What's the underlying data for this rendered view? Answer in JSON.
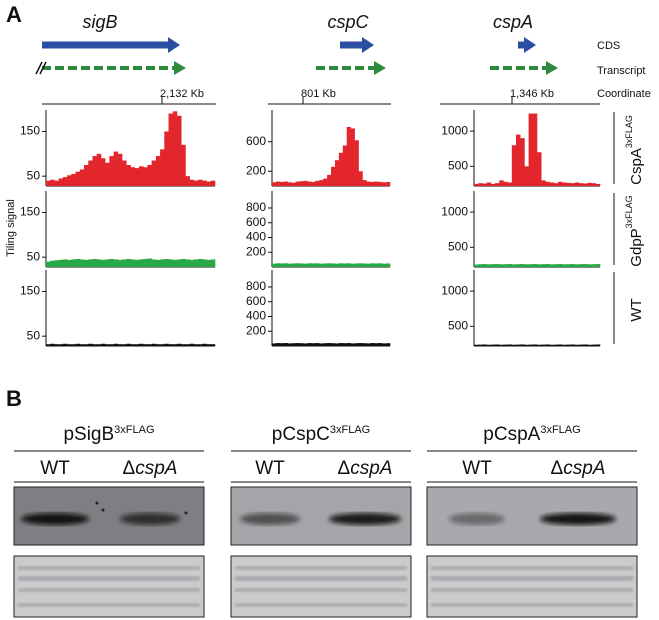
{
  "panel_a": {
    "label": "A",
    "y_axis_label": "Tiling signal",
    "track_labels": [
      "CDS",
      "Transcript",
      "Coordinate"
    ],
    "rows": [
      {
        "name": "CspA",
        "sup": "3xFLAG"
      },
      {
        "name": "GdpP",
        "sup": "3xFLAG"
      },
      {
        "name": "WT"
      }
    ],
    "genes": [
      {
        "name": "sigB",
        "coordinate": "2,132 Kb",
        "ylim": [
          28,
          198
        ],
        "panels": [
          {
            "yticks": [
              50,
              150
            ],
            "signal": [
              40,
              42,
              40,
              45,
              48,
              52,
              55,
              60,
              65,
              75,
              85,
              95,
              100,
              90,
              80,
              95,
              105,
              100,
              85,
              75,
              70,
              68,
              72,
              70,
              75,
              85,
              95,
              110,
              150,
              190,
              195,
              185,
              120,
              50,
              42,
              40,
              42,
              40,
              38,
              40
            ]
          },
          {
            "yticks": [
              50,
              150
            ],
            "signal": [
              40,
              42,
              43,
              44,
              45,
              44,
              45,
              46,
              45,
              44,
              45,
              46,
              45,
              44,
              45,
              46,
              45,
              44,
              45,
              46,
              45,
              44,
              45,
              46,
              47,
              45,
              44,
              45,
              46,
              45,
              44,
              45,
              46,
              45,
              44,
              45,
              46,
              45,
              44,
              45
            ]
          },
          {
            "yticks": [
              50,
              150
            ],
            "signal": [
              32,
              33,
              32,
              32,
              33,
              32,
              32,
              33,
              32,
              32,
              33,
              32,
              32,
              33,
              32,
              32,
              33,
              32,
              32,
              33,
              32,
              32,
              33,
              32,
              32,
              33,
              32,
              32,
              33,
              32,
              32,
              33,
              32,
              32,
              33,
              32,
              32,
              33,
              32,
              32
            ]
          }
        ]
      },
      {
        "name": "cspC",
        "coordinate": "801 Kb",
        "ylim": [
          0,
          1030
        ],
        "panels": [
          {
            "yticks": [
              200,
              600
            ],
            "signal": [
              50,
              60,
              55,
              60,
              50,
              45,
              60,
              65,
              70,
              60,
              55,
              70,
              80,
              100,
              150,
              260,
              350,
              450,
              550,
              800,
              780,
              620,
              200,
              80,
              60,
              55,
              60,
              55,
              50,
              55
            ]
          },
          {
            "yticks": [
              200,
              400,
              600,
              800
            ],
            "signal": [
              45,
              50,
              48,
              50,
              45,
              48,
              50,
              48,
              45,
              50,
              48,
              50,
              45,
              48,
              50,
              48,
              45,
              50,
              48,
              50,
              45,
              48,
              50,
              48,
              45,
              50,
              48,
              50,
              45,
              48
            ]
          },
          {
            "yticks": [
              200,
              400,
              600,
              800
            ],
            "signal": [
              35,
              40,
              38,
              40,
              35,
              38,
              40,
              38,
              35,
              40,
              38,
              40,
              35,
              38,
              40,
              38,
              35,
              40,
              38,
              40,
              35,
              38,
              40,
              38,
              35,
              40,
              38,
              40,
              35,
              38
            ]
          }
        ]
      },
      {
        "name": "cspA",
        "coordinate": "1,346 Kb",
        "ylim": [
          220,
          1300
        ],
        "panels": [
          {
            "yticks": [
              500,
              1000
            ],
            "signal": [
              250,
              260,
              255,
              270,
              250,
              260,
              300,
              280,
              270,
              800,
              950,
              900,
              500,
              1250,
              1250,
              700,
              300,
              280,
              270,
              260,
              280,
              270,
              265,
              260,
              270,
              260,
              255,
              265,
              260,
              250
            ]
          },
          {
            "yticks": [
              500,
              1000
            ],
            "signal": [
              255,
              260,
              262,
              258,
              260,
              262,
              258,
              260,
              262,
              258,
              260,
              262,
              258,
              260,
              262,
              258,
              260,
              262,
              258,
              260,
              262,
              258,
              260,
              262,
              258,
              260,
              262,
              258,
              260,
              262
            ]
          },
          {
            "yticks": [
              500,
              1000
            ],
            "signal": [
              238,
              240,
              242,
              238,
              240,
              242,
              238,
              240,
              242,
              238,
              240,
              242,
              238,
              240,
              242,
              238,
              240,
              242,
              238,
              240,
              242,
              238,
              240,
              242,
              238,
              240,
              242,
              238,
              240,
              242
            ]
          }
        ]
      }
    ]
  },
  "panel_b": {
    "label": "B",
    "blots": [
      {
        "title": "pSigB",
        "sup": "3xFLAG",
        "lanes": [
          {
            "text": "WT"
          },
          {
            "symbol": "Δ",
            "gene": "cspA"
          }
        ]
      },
      {
        "title": "pCspC",
        "sup": "3xFLAG",
        "lanes": [
          {
            "text": "WT"
          },
          {
            "symbol": "Δ",
            "gene": "cspA"
          }
        ]
      },
      {
        "title": "pCspA",
        "sup": "3xFLAG",
        "lanes": [
          {
            "text": "WT"
          },
          {
            "symbol": "Δ",
            "gene": "cspA"
          }
        ]
      }
    ]
  }
}
